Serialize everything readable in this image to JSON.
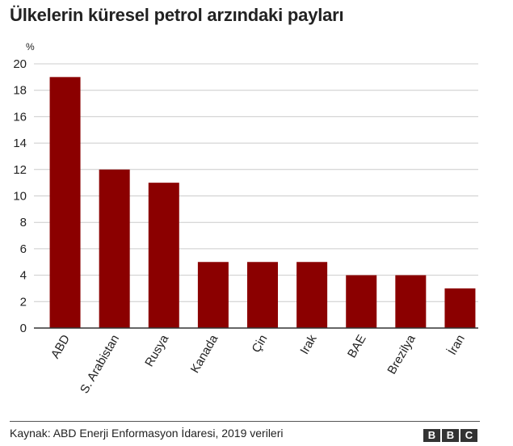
{
  "title": "Ülkelerin küresel petrol arzındaki payları",
  "source": "Kaynak: ABD Enerji Enformasyon İdaresi, 2019 verileri",
  "logo": [
    "B",
    "B",
    "C"
  ],
  "colors": {
    "bar": "#8b0000",
    "grid": "#cccccc",
    "axis": "#333333"
  },
  "chart_data": {
    "type": "bar",
    "title": "Ülkelerin küresel petrol arzındaki payları",
    "ylabel": "%",
    "xlabel": "",
    "ylim": [
      0,
      20
    ],
    "yticks": [
      0,
      2,
      4,
      6,
      8,
      10,
      12,
      14,
      16,
      18,
      20
    ],
    "grid": true,
    "categories": [
      "ABD",
      "S. Arabistan",
      "Rusya",
      "Kanada",
      "Çin",
      "Irak",
      "BAE",
      "Brezilya",
      "İran"
    ],
    "values": [
      19,
      12,
      11,
      5,
      5,
      5,
      4,
      4,
      3
    ]
  }
}
